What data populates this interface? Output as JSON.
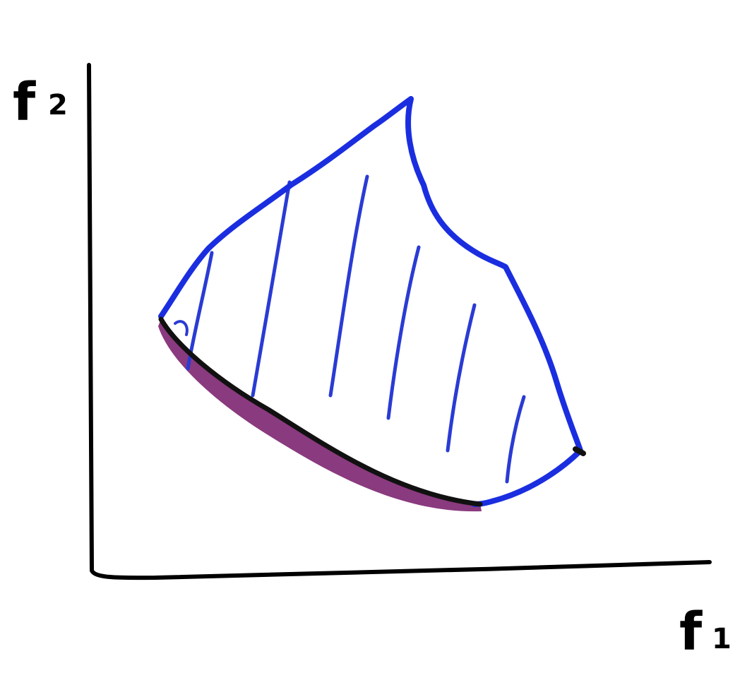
{
  "figure": {
    "type": "hand-drawn objective space sketch",
    "x_axis": {
      "label": "f",
      "subscript": "1"
    },
    "y_axis": {
      "label": "f",
      "subscript": "2"
    },
    "feasible_region": {
      "style": "hatched",
      "outline_color": "#1a2ee0"
    },
    "pareto_front": {
      "style": "thick highlighted lower-left boundary",
      "color": "#7a1f6e"
    }
  },
  "colors": {
    "axis": "#000000",
    "region_outline": "#1a2ee0",
    "hatching": "#2a3bd4",
    "front_line": "#111111",
    "front_shadow": "#8a3a7e"
  }
}
